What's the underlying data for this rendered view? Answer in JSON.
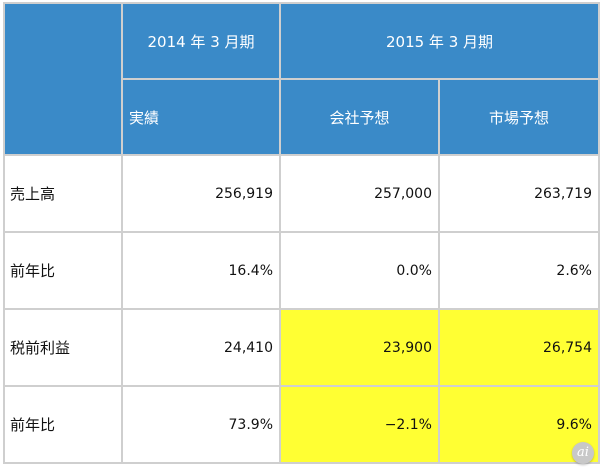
{
  "header": {
    "period_2014": "2014 年 3 月期",
    "period_2015": "2015 年 3 月期",
    "col_actual": "実績",
    "col_company_forecast": "会社予想",
    "col_market_forecast": "市場予想"
  },
  "rows": [
    {
      "label": "売上高",
      "actual": "256,919",
      "company": "257,000",
      "market": "263,719"
    },
    {
      "label": "前年比",
      "actual": "16.4%",
      "company": "0.0%",
      "market": "2.6%"
    },
    {
      "label": "税前利益",
      "actual": "24,410",
      "company": "23,900",
      "market": "26,754"
    },
    {
      "label": "前年比",
      "actual": "73.9%",
      "company": "−2.1%",
      "market": "9.6%"
    }
  ],
  "colors": {
    "header_blue": "#3a8ac8",
    "highlight_yellow": "#ffff33",
    "border_gray": "#cfcfcf"
  },
  "watermark": {
    "text": "ai",
    "icon": "itmedia-ai-logo-icon"
  }
}
